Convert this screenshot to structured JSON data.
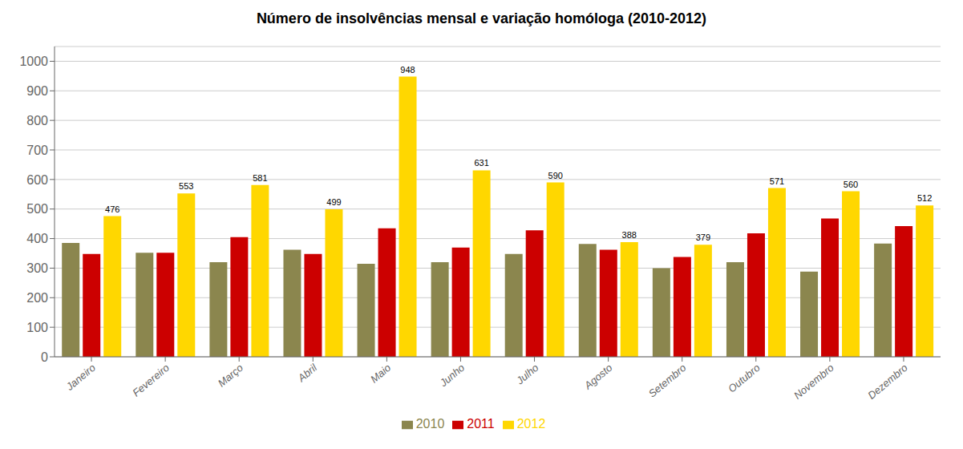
{
  "chart_data": {
    "type": "bar",
    "title": "Número de insolvências mensal e variação homóloga (2010-2012)",
    "categories": [
      "Janeiro",
      "Fevereiro",
      "Março",
      "Abril",
      "Maio",
      "Junho",
      "Julho",
      "Agosto",
      "Setembro",
      "Outubro",
      "Novembro",
      "Dezembro"
    ],
    "series": [
      {
        "name": "2010",
        "color": "#8B864E",
        "values": [
          385,
          352,
          320,
          362,
          315,
          320,
          348,
          382,
          300,
          320,
          288,
          383
        ]
      },
      {
        "name": "2011",
        "color": "#CC0000",
        "values": [
          348,
          352,
          405,
          348,
          435,
          370,
          428,
          362,
          338,
          418,
          468,
          442
        ]
      },
      {
        "name": "2012",
        "color": "#FFD700",
        "values": [
          476,
          553,
          581,
          499,
          948,
          631,
          590,
          388,
          379,
          571,
          560,
          512
        ],
        "data_labels": true
      }
    ],
    "ylim": [
      0,
      1050
    ],
    "yticks": [
      0,
      100,
      200,
      300,
      400,
      500,
      600,
      700,
      800,
      900,
      1000
    ],
    "grid": true,
    "legend": "bottom"
  }
}
